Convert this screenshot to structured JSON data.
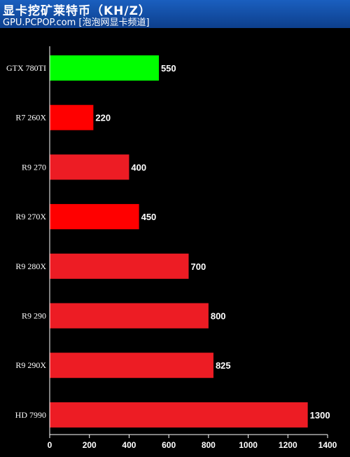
{
  "header": {
    "title": "显卡挖矿莱特币（KH/Z）",
    "subtitle": "GPU.PCPOP.com [泡泡网显卡频道]"
  },
  "colors": {
    "background": "#000000",
    "header": "#1a5fbf",
    "highlight_bar": "#00ff00",
    "bright_red_bar": "#ff0000",
    "red_bar": "#ed1c24",
    "axis": "#ffffff"
  },
  "chart_data": {
    "type": "bar",
    "orientation": "horizontal",
    "title": "显卡挖矿莱特币（KH/Z）",
    "xlabel": "",
    "ylabel": "",
    "xlim": [
      0,
      1400
    ],
    "xticks": [
      0,
      200,
      400,
      600,
      800,
      1000,
      1200,
      1400
    ],
    "categories": [
      "GTX 780TI",
      "R7 260X",
      "R9 270",
      "R9 270X",
      "R9 280X",
      "R9 290",
      "R9 290X",
      "HD 7990"
    ],
    "values": [
      550,
      220,
      400,
      450,
      700,
      800,
      825,
      1300
    ],
    "bar_colors": [
      "#00ff00",
      "#ff0000",
      "#ed1c24",
      "#ff0000",
      "#ed1c24",
      "#ed1c24",
      "#ed1c24",
      "#ed1c24"
    ],
    "grid": false,
    "legend": "none"
  }
}
